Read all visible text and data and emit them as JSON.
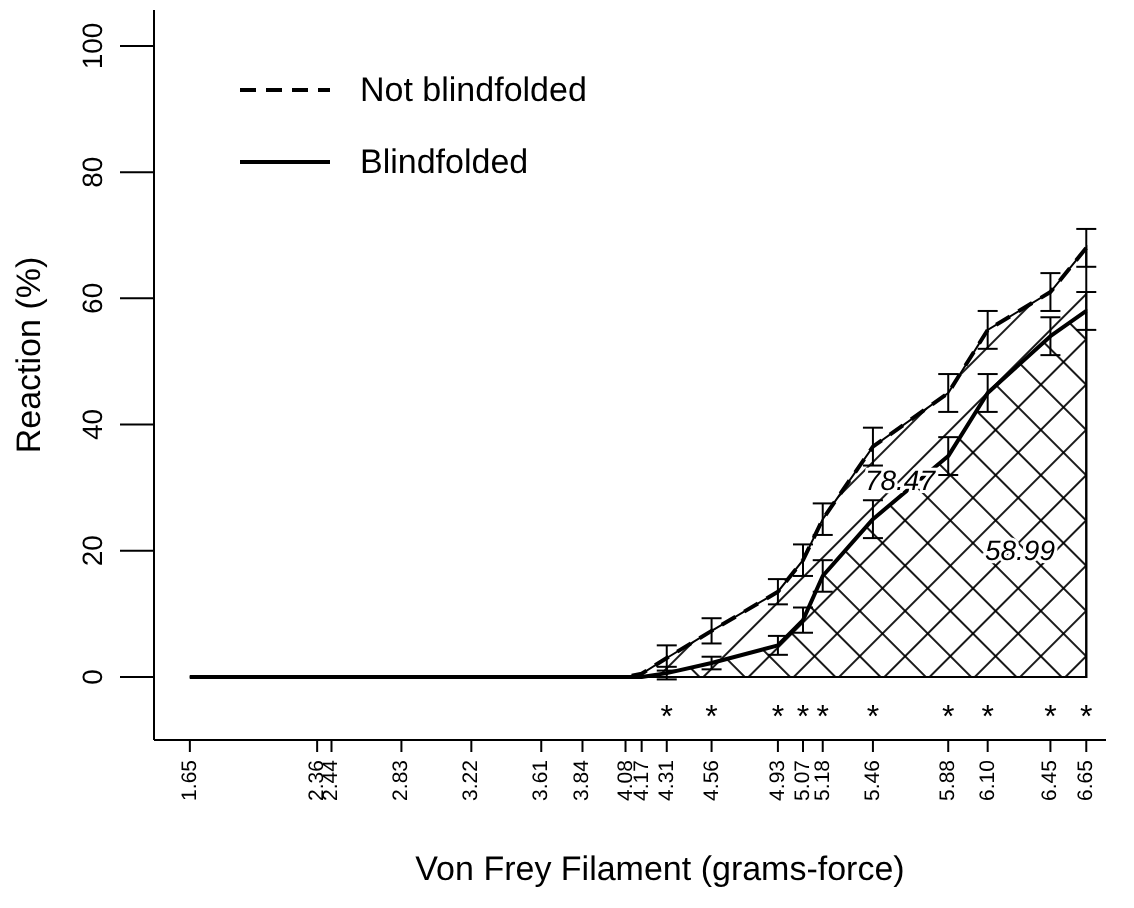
{
  "chart_data": {
    "type": "area",
    "xlabel": "Von Frey Filament (grams-force)",
    "ylabel": "Reaction (%)",
    "x": [
      1.65,
      2.36,
      2.44,
      2.83,
      3.22,
      3.61,
      3.84,
      4.08,
      4.17,
      4.31,
      4.56,
      4.93,
      5.07,
      5.18,
      5.46,
      5.88,
      6.1,
      6.45,
      6.65
    ],
    "series": [
      {
        "name": "Not blindfolded",
        "color": "#000000",
        "line_style": "dashed",
        "values": [
          0,
          0,
          0,
          0,
          0,
          0,
          0,
          0,
          0.5,
          3,
          7.3,
          13.5,
          18.5,
          25,
          36.5,
          45,
          55,
          61,
          68
        ],
        "errors": [
          null,
          null,
          null,
          null,
          null,
          null,
          null,
          null,
          null,
          2,
          2,
          2,
          2.5,
          2.5,
          3,
          3,
          3,
          3,
          3
        ]
      },
      {
        "name": "Blindfolded",
        "color": "#000000",
        "line_style": "solid",
        "values": [
          0,
          0,
          0,
          0,
          0,
          0,
          0,
          0,
          0,
          0.6,
          2.2,
          5,
          9,
          16,
          25,
          35,
          45,
          54,
          58
        ],
        "errors": [
          null,
          null,
          null,
          null,
          null,
          null,
          null,
          null,
          null,
          1,
          1,
          1.5,
          2,
          2.5,
          3,
          3,
          3,
          3,
          3
        ]
      }
    ],
    "xlim": [
      1.45,
      6.76
    ],
    "ylim": [
      -10,
      105.7
    ],
    "xticks": [
      1.65,
      2.36,
      2.44,
      2.83,
      3.22,
      3.61,
      3.84,
      4.08,
      4.17,
      4.31,
      4.56,
      4.93,
      5.07,
      5.18,
      5.46,
      5.88,
      {
        "value": 6.1,
        "label": "6.10"
      },
      6.45,
      6.65
    ],
    "yticks": [
      0,
      20,
      40,
      60,
      80,
      100
    ],
    "legend": "top left",
    "marker": "none",
    "annotations": [
      "78.47",
      "58.99",
      "*",
      "*",
      "*",
      "*",
      "*",
      "*",
      "*",
      "*",
      "*",
      "*"
    ]
  }
}
